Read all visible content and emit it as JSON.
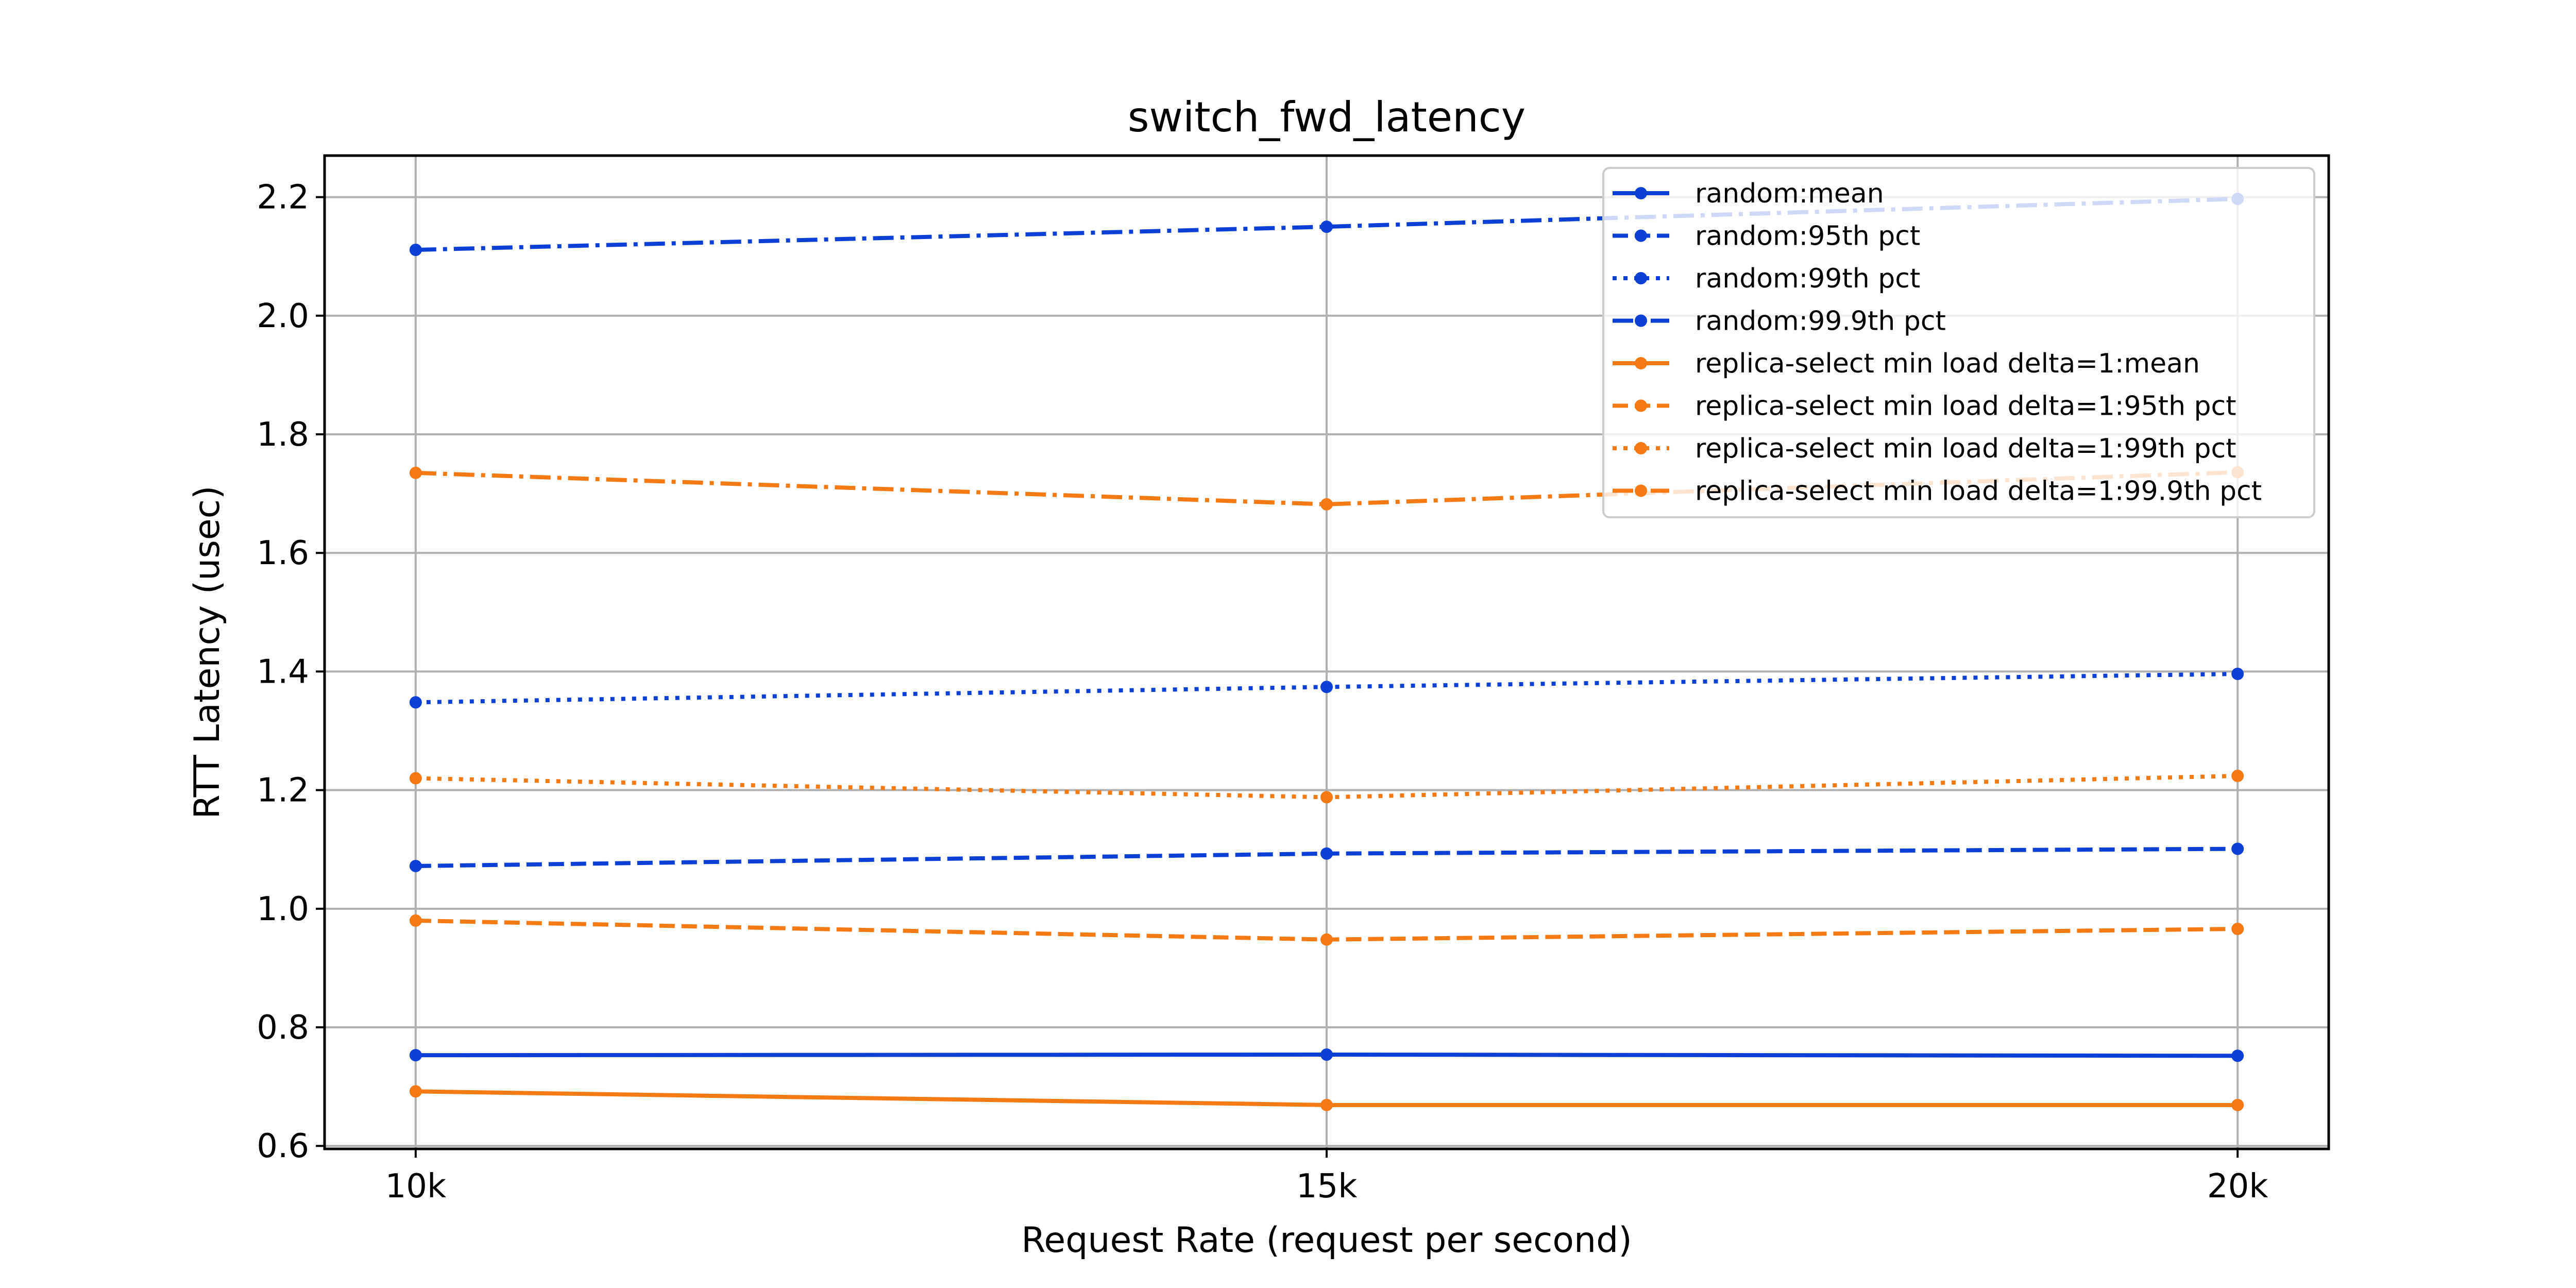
{
  "chart_data": {
    "type": "line",
    "title": "switch_fwd_latency",
    "xlabel": "Request Rate (request per second)",
    "ylabel": "RTT Latency (usec)",
    "x": [
      10,
      15,
      20
    ],
    "xtick_labels": [
      "10k",
      "15k",
      "20k"
    ],
    "xlim": [
      9.5,
      20.5
    ],
    "ylim": [
      0.595,
      2.27
    ],
    "yticks": [
      0.6,
      0.8,
      1.0,
      1.2,
      1.4,
      1.6,
      1.8,
      2.0,
      2.2
    ],
    "ytick_labels": [
      "0.6",
      "0.8",
      "1.0",
      "1.2",
      "1.4",
      "1.6",
      "1.8",
      "2.0",
      "2.2"
    ],
    "grid": true,
    "legend_position": "top-right",
    "series": [
      {
        "name": "random:mean",
        "values": [
          0.753,
          0.754,
          0.752
        ],
        "color": "#0b3fd6",
        "style": "solid"
      },
      {
        "name": "random:95th pct",
        "values": [
          1.072,
          1.093,
          1.101
        ],
        "color": "#0b3fd6",
        "style": "dashed"
      },
      {
        "name": "random:99th pct",
        "values": [
          1.348,
          1.374,
          1.396
        ],
        "color": "#0b3fd6",
        "style": "dotted"
      },
      {
        "name": "random:99.9th pct",
        "values": [
          2.111,
          2.15,
          2.197
        ],
        "color": "#0b3fd6",
        "style": "dashdot"
      },
      {
        "name": "replica-select min load delta=1:mean",
        "values": [
          0.692,
          0.669,
          0.669
        ],
        "color": "#f57a14",
        "style": "solid"
      },
      {
        "name": "replica-select min load delta=1:95th pct",
        "values": [
          0.98,
          0.948,
          0.966
        ],
        "color": "#f57a14",
        "style": "dashed"
      },
      {
        "name": "replica-select min load delta=1:99th pct",
        "values": [
          1.22,
          1.188,
          1.224
        ],
        "color": "#f57a14",
        "style": "dotted"
      },
      {
        "name": "replica-select min load delta=1:99.9th pct",
        "values": [
          1.735,
          1.682,
          1.736
        ],
        "color": "#f57a14",
        "style": "dashdot"
      }
    ]
  }
}
